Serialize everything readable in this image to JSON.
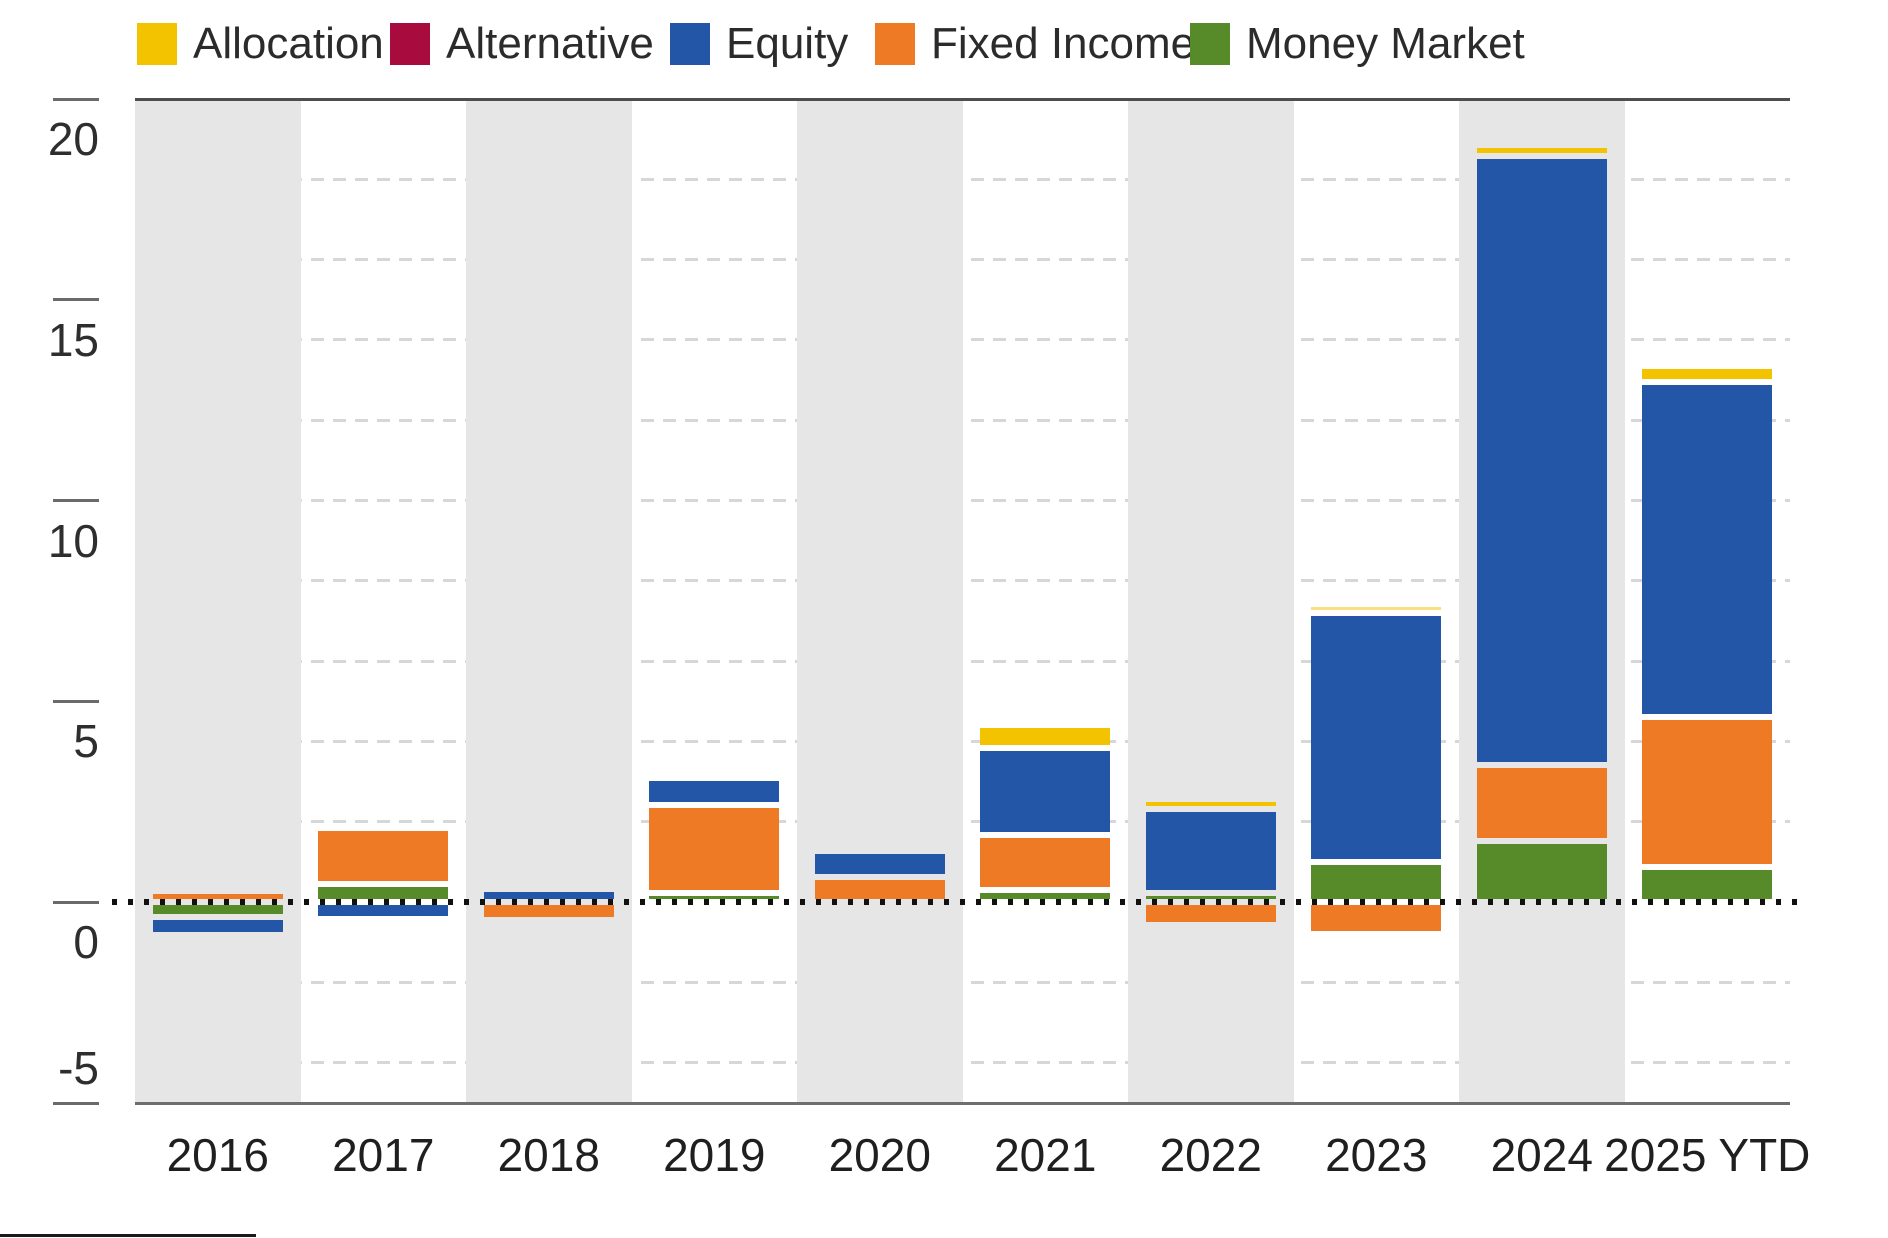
{
  "legend": {
    "items": [
      {
        "id": "allocation",
        "label": "Allocation",
        "color": "#F3C300"
      },
      {
        "id": "alternative",
        "label": "Alternative",
        "color": "#A80C3F"
      },
      {
        "id": "equity",
        "label": "Equity",
        "color": "#2456A7"
      },
      {
        "id": "fixed-income",
        "label": "Fixed Income",
        "color": "#EE7A25"
      },
      {
        "id": "money-market",
        "label": "Money Market",
        "color": "#578A28"
      }
    ]
  },
  "y_axis": {
    "ticks": [
      {
        "value": 20,
        "label": "20",
        "label_position": "below"
      },
      {
        "value": 15,
        "label": "15",
        "label_position": "below"
      },
      {
        "value": 10,
        "label": "10",
        "label_position": "below"
      },
      {
        "value": 5,
        "label": "5",
        "label_position": "below"
      },
      {
        "value": 0,
        "label": "0",
        "label_position": "below"
      },
      {
        "value": -5,
        "label": "-5",
        "label_position": "above"
      }
    ]
  },
  "x_axis": {
    "labels": [
      "2016",
      "2017",
      "2018",
      "2019",
      "2020",
      "2021",
      "2022",
      "2023",
      "2024",
      "2025 YTD"
    ]
  },
  "chart_data": {
    "type": "bar",
    "stacked": true,
    "title": "",
    "xlabel": "",
    "ylabel": "",
    "ylim": [
      -5,
      20
    ],
    "gridline_values": [
      18,
      16,
      14,
      12,
      10,
      8,
      6,
      4,
      2,
      -2,
      -4
    ],
    "zero_line_dotted": true,
    "alternating_column_shading": "even columns gray",
    "categories": [
      "2016",
      "2017",
      "2018",
      "2019",
      "2020",
      "2021",
      "2022",
      "2023",
      "2024",
      "2025 YTD"
    ],
    "series": [
      {
        "name": "Allocation",
        "color": "#F3C300",
        "values": [
          0,
          0,
          0,
          0,
          0,
          0.55,
          0.26,
          0.22,
          0.27,
          0.4
        ]
      },
      {
        "name": "Alternative",
        "color": "#A80C3F",
        "values": [
          0,
          0,
          0,
          0,
          0,
          0,
          0,
          0,
          0,
          0
        ]
      },
      {
        "name": "Equity",
        "color": "#2456A7",
        "values": [
          -0.46,
          -0.43,
          0.33,
          0.68,
          0.65,
          2.17,
          2.1,
          6.2,
          15.16,
          8.35
        ]
      },
      {
        "name": "Fixed Income",
        "color": "#EE7A25",
        "values": [
          0.28,
          1.4,
          -0.45,
          2.2,
          0.62,
          1.38,
          -0.57,
          -0.78,
          1.9,
          3.72
        ]
      },
      {
        "name": "Money Market",
        "color": "#578A28",
        "values": [
          -0.36,
          0.45,
          0,
          0.22,
          0,
          0.3,
          0.22,
          1.0,
          1.52,
          0.88
        ]
      }
    ],
    "segments_by_year": [
      {
        "year": "2016",
        "segments": [
          {
            "series": "fixed-income",
            "from": 0,
            "to": 0.28
          },
          {
            "series": "money-market",
            "from": 0,
            "to": -0.36
          },
          {
            "series": "equity",
            "from": -0.36,
            "to": -0.82
          }
        ]
      },
      {
        "year": "2017",
        "segments": [
          {
            "series": "money-market",
            "from": 0,
            "to": 0.45
          },
          {
            "series": "fixed-income",
            "from": 0.45,
            "to": 1.85
          },
          {
            "series": "equity",
            "from": 0,
            "to": -0.43
          }
        ]
      },
      {
        "year": "2018",
        "segments": [
          {
            "series": "equity",
            "from": 0,
            "to": 0.33
          },
          {
            "series": "fixed-income",
            "from": 0,
            "to": -0.45
          }
        ]
      },
      {
        "year": "2019",
        "segments": [
          {
            "series": "money-market",
            "from": 0,
            "to": 0.22
          },
          {
            "series": "fixed-income",
            "from": 0.22,
            "to": 2.42
          },
          {
            "series": "equity",
            "from": 2.42,
            "to": 3.1
          }
        ]
      },
      {
        "year": "2020",
        "segments": [
          {
            "series": "fixed-income",
            "from": 0,
            "to": 0.62
          },
          {
            "series": "equity",
            "from": 0.62,
            "to": 1.27
          }
        ]
      },
      {
        "year": "2021",
        "segments": [
          {
            "series": "money-market",
            "from": 0,
            "to": 0.3
          },
          {
            "series": "fixed-income",
            "from": 0.3,
            "to": 1.68
          },
          {
            "series": "equity",
            "from": 1.68,
            "to": 3.85
          },
          {
            "series": "allocation",
            "from": 3.85,
            "to": 4.4
          }
        ]
      },
      {
        "year": "2022",
        "segments": [
          {
            "series": "money-market",
            "from": 0,
            "to": 0.22
          },
          {
            "series": "equity",
            "from": 0.22,
            "to": 2.32
          },
          {
            "series": "allocation",
            "from": 2.32,
            "to": 2.58
          },
          {
            "series": "fixed-income",
            "from": 0,
            "to": -0.57
          }
        ]
      },
      {
        "year": "2023",
        "segments": [
          {
            "series": "money-market",
            "from": 0,
            "to": 1.0
          },
          {
            "series": "equity",
            "from": 1.0,
            "to": 7.2
          },
          {
            "series": "allocation",
            "from": 7.2,
            "to": 7.42,
            "faint": true
          },
          {
            "series": "fixed-income",
            "from": 0,
            "to": -0.78
          }
        ]
      },
      {
        "year": "2024",
        "segments": [
          {
            "series": "money-market",
            "from": 0,
            "to": 1.52
          },
          {
            "series": "fixed-income",
            "from": 1.52,
            "to": 3.42
          },
          {
            "series": "equity",
            "from": 3.42,
            "to": 18.58
          },
          {
            "series": "allocation",
            "from": 18.58,
            "to": 18.85
          }
        ]
      },
      {
        "year": "2025 YTD",
        "segments": [
          {
            "series": "money-market",
            "from": 0,
            "to": 0.88
          },
          {
            "series": "fixed-income",
            "from": 0.88,
            "to": 4.6
          },
          {
            "series": "equity",
            "from": 4.6,
            "to": 12.95
          },
          {
            "series": "allocation",
            "from": 12.95,
            "to": 13.35
          }
        ]
      }
    ]
  },
  "colors": {
    "band_gray": "#E6E6E6",
    "gridline": "#D7D7D7",
    "axis_top": "#4D4D4D",
    "axis_bottom": "#6E6E6E",
    "tick_line": "#6A6A6A",
    "zero_line": "#111111",
    "text": "#2E2E2E",
    "background": "#FFFFFF"
  }
}
